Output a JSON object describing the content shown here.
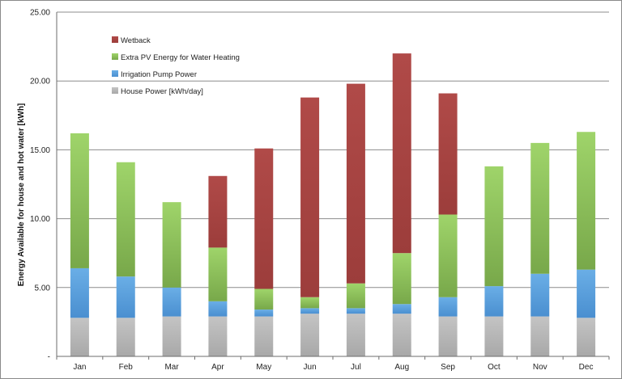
{
  "chart_data": {
    "type": "bar",
    "stacked": true,
    "title": "",
    "xlabel": "",
    "ylabel": "Energy Available for house and hot water [kWh]",
    "ylim": [
      0,
      25
    ],
    "yticks": [
      {
        "value": 0,
        "label": "-"
      },
      {
        "value": 5,
        "label": "5.00"
      },
      {
        "value": 10,
        "label": "10.00"
      },
      {
        "value": 15,
        "label": "15.00"
      },
      {
        "value": 20,
        "label": "20.00"
      },
      {
        "value": 25,
        "label": "25.00"
      }
    ],
    "grid": true,
    "legend_position": "top-left",
    "categories": [
      "Jan",
      "Feb",
      "Mar",
      "Apr",
      "May",
      "Jun",
      "Jul",
      "Aug",
      "Sep",
      "Oct",
      "Nov",
      "Dec"
    ],
    "series": [
      {
        "name": "House Power [kWh/day]",
        "color_top": "#c4c4c4",
        "color_bottom": "#a8a8a8",
        "values": [
          2.8,
          2.8,
          2.9,
          2.9,
          2.9,
          3.1,
          3.1,
          3.1,
          2.9,
          2.9,
          2.9,
          2.8
        ]
      },
      {
        "name": "Irrigation Pump Power",
        "color_top": "#6aaee6",
        "color_bottom": "#4a8fd0",
        "values": [
          3.6,
          3.0,
          2.1,
          1.1,
          0.5,
          0.4,
          0.4,
          0.7,
          1.4,
          2.2,
          3.1,
          3.5
        ]
      },
      {
        "name": "Extra PV Energy for Water Heating",
        "color_top": "#9fd46a",
        "color_bottom": "#78a84a",
        "values": [
          9.8,
          8.3,
          6.2,
          3.9,
          1.5,
          0.8,
          1.8,
          3.7,
          6.0,
          8.7,
          9.5,
          10.0
        ]
      },
      {
        "name": "Wetback",
        "color_top": "#b04a48",
        "color_bottom": "#9c3d3b",
        "values": [
          0,
          0,
          0,
          5.2,
          10.2,
          14.5,
          14.5,
          14.5,
          8.8,
          0,
          0,
          0
        ]
      }
    ],
    "legend_order": [
      "Wetback",
      "Extra PV Energy for Water Heating",
      "Irrigation Pump Power",
      "House Power [kWh/day]"
    ]
  }
}
